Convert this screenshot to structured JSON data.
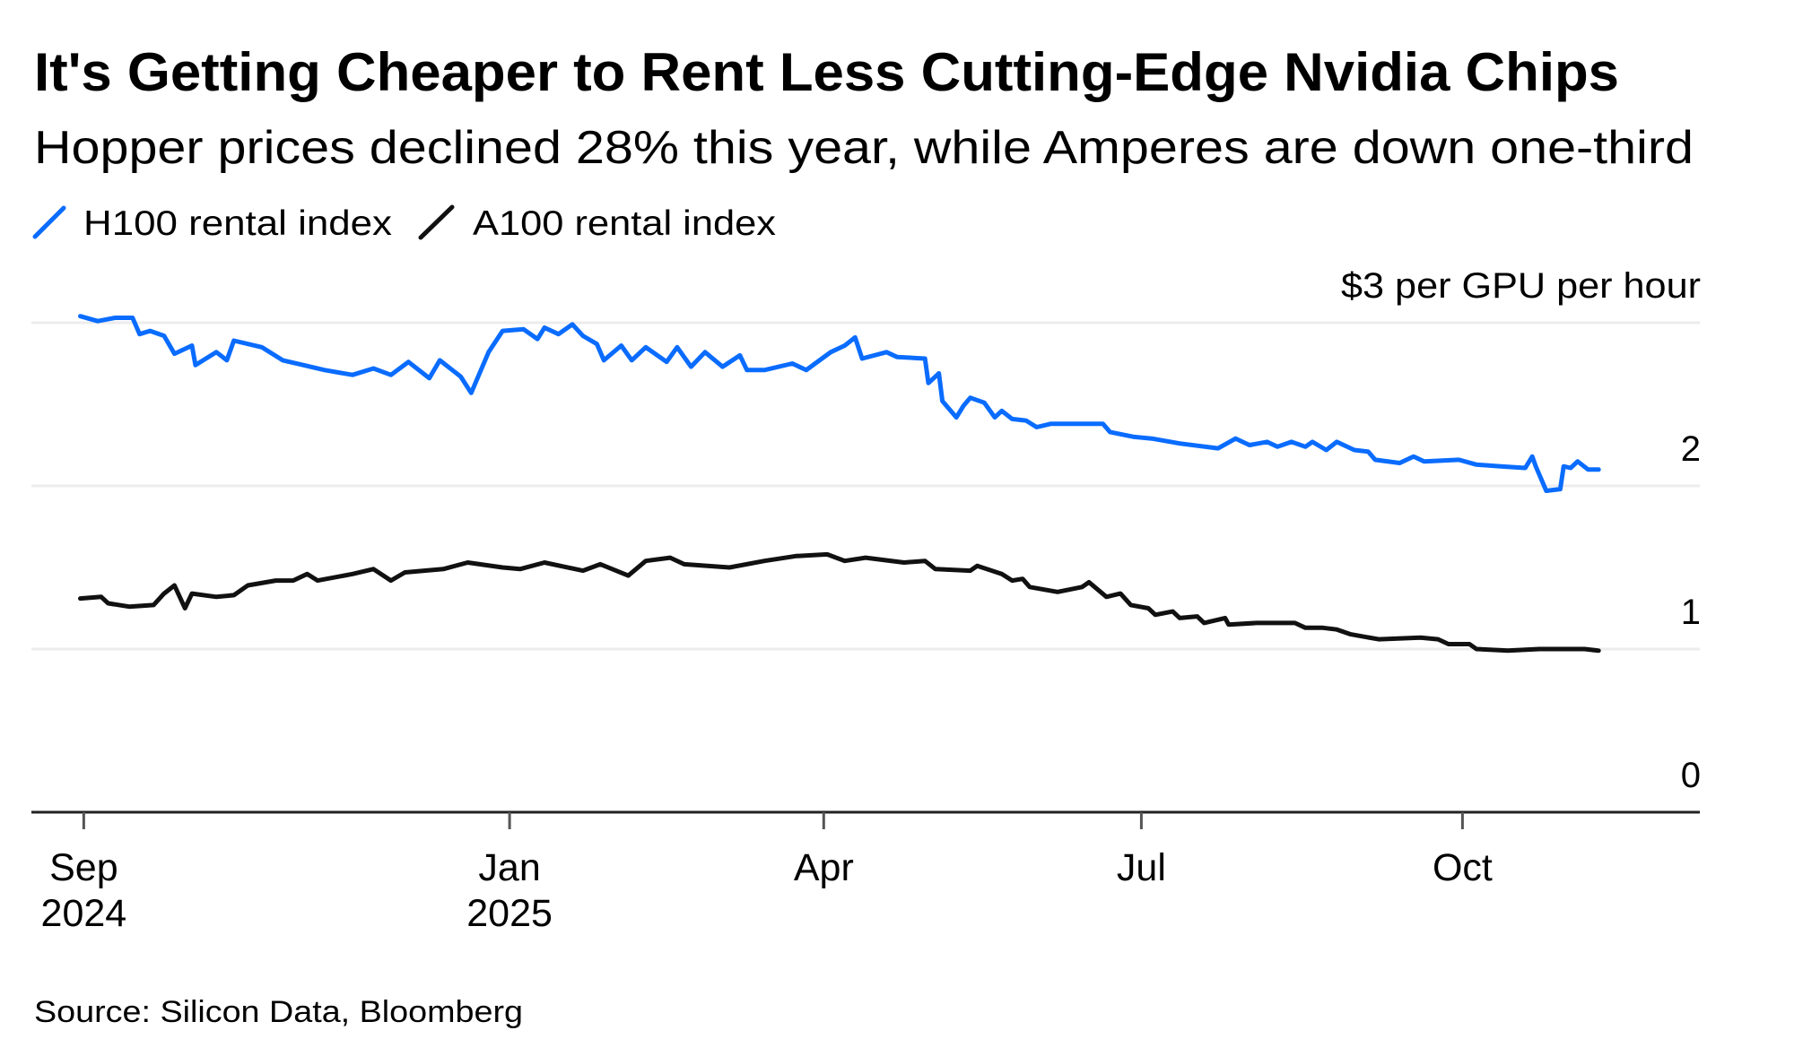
{
  "chart_data": {
    "type": "line",
    "title": "It's Getting Cheaper to Rent Less Cutting-Edge Nvidia Chips",
    "subtitle": "Hopper prices declined 28% this year, while Amperes are down one-third",
    "ylabel": "$3 per GPU per hour",
    "xlabel": "",
    "ylim": [
      0,
      3
    ],
    "xlim": [
      "2024-08-17",
      "2025-12-08"
    ],
    "grid": true,
    "legend_position": "top-left",
    "y_ticks": [
      {
        "value": 0,
        "label": "0"
      },
      {
        "value": 1,
        "label": "1"
      },
      {
        "value": 2,
        "label": "2"
      },
      {
        "value": 3,
        "label": "$3 per GPU per hour"
      }
    ],
    "x_ticks": [
      {
        "date": "2024-09-01",
        "label": "Sep",
        "sublabel": "2024"
      },
      {
        "date": "2025-01-01",
        "label": "Jan",
        "sublabel": "2025"
      },
      {
        "date": "2025-04-01",
        "label": "Apr",
        "sublabel": ""
      },
      {
        "date": "2025-07-01",
        "label": "Jul",
        "sublabel": ""
      },
      {
        "date": "2025-10-01",
        "label": "Oct",
        "sublabel": ""
      }
    ],
    "series": [
      {
        "name": "H100 rental index",
        "color": "#0a6cff",
        "points": [
          [
            "2024-08-31",
            3.04
          ],
          [
            "2024-09-05",
            3.01
          ],
          [
            "2024-09-10",
            3.03
          ],
          [
            "2024-09-15",
            3.03
          ],
          [
            "2024-09-17",
            2.93
          ],
          [
            "2024-09-20",
            2.95
          ],
          [
            "2024-09-24",
            2.92
          ],
          [
            "2024-09-27",
            2.81
          ],
          [
            "2024-10-02",
            2.86
          ],
          [
            "2024-10-03",
            2.74
          ],
          [
            "2024-10-09",
            2.82
          ],
          [
            "2024-10-12",
            2.77
          ],
          [
            "2024-10-14",
            2.89
          ],
          [
            "2024-10-22",
            2.85
          ],
          [
            "2024-10-28",
            2.77
          ],
          [
            "2024-11-03",
            2.74
          ],
          [
            "2024-11-09",
            2.71
          ],
          [
            "2024-11-17",
            2.68
          ],
          [
            "2024-11-23",
            2.72
          ],
          [
            "2024-11-28",
            2.68
          ],
          [
            "2024-12-03",
            2.76
          ],
          [
            "2024-12-09",
            2.66
          ],
          [
            "2024-12-12",
            2.77
          ],
          [
            "2024-12-18",
            2.67
          ],
          [
            "2024-12-21",
            2.57
          ],
          [
            "2024-12-26",
            2.82
          ],
          [
            "2024-12-30",
            2.95
          ],
          [
            "2025-01-05",
            2.96
          ],
          [
            "2025-01-09",
            2.9
          ],
          [
            "2025-01-11",
            2.97
          ],
          [
            "2025-01-15",
            2.93
          ],
          [
            "2025-01-19",
            2.99
          ],
          [
            "2025-01-22",
            2.92
          ],
          [
            "2025-01-26",
            2.87
          ],
          [
            "2025-01-28",
            2.77
          ],
          [
            "2025-02-02",
            2.86
          ],
          [
            "2025-02-05",
            2.77
          ],
          [
            "2025-02-09",
            2.85
          ],
          [
            "2025-02-15",
            2.76
          ],
          [
            "2025-02-18",
            2.85
          ],
          [
            "2025-02-22",
            2.73
          ],
          [
            "2025-02-26",
            2.82
          ],
          [
            "2025-03-03",
            2.73
          ],
          [
            "2025-03-08",
            2.8
          ],
          [
            "2025-03-10",
            2.71
          ],
          [
            "2025-03-15",
            2.71
          ],
          [
            "2025-03-23",
            2.75
          ],
          [
            "2025-03-27",
            2.71
          ],
          [
            "2025-04-03",
            2.82
          ],
          [
            "2025-04-07",
            2.86
          ],
          [
            "2025-04-10",
            2.91
          ],
          [
            "2025-04-12",
            2.78
          ],
          [
            "2025-04-19",
            2.82
          ],
          [
            "2025-04-22",
            2.79
          ],
          [
            "2025-04-30",
            2.78
          ],
          [
            "2025-05-01",
            2.63
          ],
          [
            "2025-05-04",
            2.69
          ],
          [
            "2025-05-05",
            2.52
          ],
          [
            "2025-05-09",
            2.42
          ],
          [
            "2025-05-11",
            2.49
          ],
          [
            "2025-05-13",
            2.54
          ],
          [
            "2025-05-17",
            2.51
          ],
          [
            "2025-05-20",
            2.42
          ],
          [
            "2025-05-22",
            2.46
          ],
          [
            "2025-05-25",
            2.41
          ],
          [
            "2025-05-29",
            2.4
          ],
          [
            "2025-06-01",
            2.36
          ],
          [
            "2025-06-05",
            2.38
          ],
          [
            "2025-06-12",
            2.38
          ],
          [
            "2025-06-20",
            2.38
          ],
          [
            "2025-06-22",
            2.33
          ],
          [
            "2025-06-29",
            2.3
          ],
          [
            "2025-07-04",
            2.29
          ],
          [
            "2025-07-12",
            2.26
          ],
          [
            "2025-07-23",
            2.23
          ],
          [
            "2025-07-28",
            2.29
          ],
          [
            "2025-08-01",
            2.25
          ],
          [
            "2025-08-06",
            2.27
          ],
          [
            "2025-08-09",
            2.24
          ],
          [
            "2025-08-13",
            2.27
          ],
          [
            "2025-08-17",
            2.24
          ],
          [
            "2025-08-19",
            2.27
          ],
          [
            "2025-08-23",
            2.22
          ],
          [
            "2025-08-26",
            2.27
          ],
          [
            "2025-08-31",
            2.22
          ],
          [
            "2025-09-04",
            2.21
          ],
          [
            "2025-09-06",
            2.16
          ],
          [
            "2025-09-13",
            2.14
          ],
          [
            "2025-09-17",
            2.18
          ],
          [
            "2025-09-20",
            2.15
          ],
          [
            "2025-09-30",
            2.16
          ],
          [
            "2025-10-05",
            2.13
          ],
          [
            "2025-10-12",
            2.12
          ],
          [
            "2025-10-19",
            2.11
          ],
          [
            "2025-10-21",
            2.18
          ],
          [
            "2025-10-22",
            2.12
          ],
          [
            "2025-10-24",
            2.02
          ],
          [
            "2025-10-25",
            1.97
          ],
          [
            "2025-10-29",
            1.98
          ],
          [
            "2025-10-30",
            2.12
          ],
          [
            "2025-11-01",
            2.11
          ],
          [
            "2025-11-03",
            2.15
          ],
          [
            "2025-11-06",
            2.1
          ],
          [
            "2025-11-09",
            2.1
          ]
        ]
      },
      {
        "name": "A100 rental index",
        "color": "#111111",
        "points": [
          [
            "2024-08-31",
            1.31
          ],
          [
            "2024-09-06",
            1.32
          ],
          [
            "2024-09-08",
            1.28
          ],
          [
            "2024-09-14",
            1.26
          ],
          [
            "2024-09-21",
            1.27
          ],
          [
            "2024-09-24",
            1.34
          ],
          [
            "2024-09-27",
            1.39
          ],
          [
            "2024-09-30",
            1.25
          ],
          [
            "2024-10-02",
            1.34
          ],
          [
            "2024-10-09",
            1.32
          ],
          [
            "2024-10-14",
            1.33
          ],
          [
            "2024-10-18",
            1.39
          ],
          [
            "2024-10-26",
            1.42
          ],
          [
            "2024-10-31",
            1.42
          ],
          [
            "2024-11-04",
            1.46
          ],
          [
            "2024-11-07",
            1.42
          ],
          [
            "2024-11-17",
            1.46
          ],
          [
            "2024-11-23",
            1.49
          ],
          [
            "2024-11-28",
            1.42
          ],
          [
            "2024-12-02",
            1.47
          ],
          [
            "2024-12-13",
            1.49
          ],
          [
            "2024-12-20",
            1.53
          ],
          [
            "2024-12-30",
            1.5
          ],
          [
            "2025-01-04",
            1.49
          ],
          [
            "2025-01-11",
            1.53
          ],
          [
            "2025-01-22",
            1.48
          ],
          [
            "2025-01-27",
            1.52
          ],
          [
            "2025-02-04",
            1.45
          ],
          [
            "2025-02-09",
            1.54
          ],
          [
            "2025-02-16",
            1.56
          ],
          [
            "2025-02-20",
            1.52
          ],
          [
            "2025-03-05",
            1.5
          ],
          [
            "2025-03-15",
            1.54
          ],
          [
            "2025-03-24",
            1.57
          ],
          [
            "2025-04-02",
            1.58
          ],
          [
            "2025-04-07",
            1.54
          ],
          [
            "2025-04-13",
            1.56
          ],
          [
            "2025-04-24",
            1.53
          ],
          [
            "2025-04-30",
            1.54
          ],
          [
            "2025-05-03",
            1.49
          ],
          [
            "2025-05-13",
            1.48
          ],
          [
            "2025-05-15",
            1.51
          ],
          [
            "2025-05-22",
            1.46
          ],
          [
            "2025-05-25",
            1.42
          ],
          [
            "2025-05-28",
            1.43
          ],
          [
            "2025-05-30",
            1.38
          ],
          [
            "2025-06-07",
            1.35
          ],
          [
            "2025-06-14",
            1.38
          ],
          [
            "2025-06-16",
            1.41
          ],
          [
            "2025-06-21",
            1.32
          ],
          [
            "2025-06-25",
            1.34
          ],
          [
            "2025-06-28",
            1.27
          ],
          [
            "2025-07-03",
            1.25
          ],
          [
            "2025-07-05",
            1.21
          ],
          [
            "2025-07-10",
            1.23
          ],
          [
            "2025-07-12",
            1.19
          ],
          [
            "2025-07-17",
            1.2
          ],
          [
            "2025-07-19",
            1.16
          ],
          [
            "2025-07-25",
            1.19
          ],
          [
            "2025-07-26",
            1.15
          ],
          [
            "2025-08-03",
            1.16
          ],
          [
            "2025-08-14",
            1.16
          ],
          [
            "2025-08-17",
            1.13
          ],
          [
            "2025-08-22",
            1.13
          ],
          [
            "2025-08-26",
            1.12
          ],
          [
            "2025-08-30",
            1.09
          ],
          [
            "2025-09-07",
            1.06
          ],
          [
            "2025-09-19",
            1.07
          ],
          [
            "2025-09-24",
            1.06
          ],
          [
            "2025-09-27",
            1.03
          ],
          [
            "2025-10-03",
            1.03
          ],
          [
            "2025-10-05",
            1.0
          ],
          [
            "2025-10-14",
            0.99
          ],
          [
            "2025-10-23",
            1.0
          ],
          [
            "2025-11-05",
            1.0
          ],
          [
            "2025-11-09",
            0.99
          ]
        ]
      }
    ],
    "source": "Source: Silicon Data, Bloomberg"
  }
}
